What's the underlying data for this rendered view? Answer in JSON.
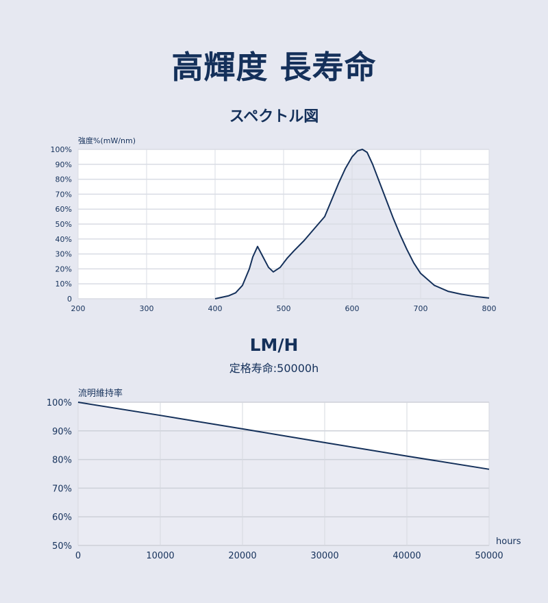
{
  "page": {
    "title": "高輝度 長寿命"
  },
  "spectrum": {
    "heading": "スペクトル図"
  },
  "lumen": {
    "heading": "LM/H",
    "subheading": "定格寿命:50000h"
  },
  "colors": {
    "background": "#e6e8f1",
    "plot_background": "#ffffff",
    "grid": "#d9dce4",
    "line": "#14305a",
    "fill": "#e6e8f1",
    "text": "#14305a"
  },
  "chart_data": [
    {
      "type": "area",
      "title": "スペクトル図",
      "xlabel": "",
      "ylabel": "強度%(mW/nm)",
      "xlim": [
        200,
        800
      ],
      "ylim": [
        0,
        100
      ],
      "x_ticks": [
        "200",
        "300",
        "400",
        "500",
        "600",
        "700",
        "800"
      ],
      "y_ticks": [
        "0",
        "10%",
        "20%",
        "30%",
        "40%",
        "50%",
        "60%",
        "70%",
        "80%",
        "90%",
        "100%"
      ],
      "grid": true,
      "series": [
        {
          "x": [
            400,
            420,
            430,
            440,
            450,
            455,
            462,
            470,
            478,
            485,
            495,
            505,
            515,
            530,
            545,
            560,
            570,
            580,
            590,
            600,
            608,
            615,
            622,
            630,
            640,
            650,
            660,
            670,
            680,
            690,
            700,
            720,
            740,
            760,
            780,
            800
          ],
          "y": [
            0,
            2,
            4,
            9,
            20,
            28,
            35,
            28,
            21,
            18,
            21,
            27,
            32,
            39,
            47,
            55,
            66,
            77,
            87,
            95,
            99,
            100,
            98,
            90,
            78,
            66,
            54,
            43,
            33,
            24,
            17,
            9,
            5,
            3,
            1.5,
            0.5
          ]
        }
      ]
    },
    {
      "type": "area",
      "title": "LM/H",
      "xlabel": "hours",
      "ylabel": "流明維持率",
      "xlim": [
        0,
        50000
      ],
      "ylim": [
        50,
        100
      ],
      "x_ticks": [
        "0",
        "10000",
        "20000",
        "30000",
        "40000",
        "50000"
      ],
      "y_ticks": [
        "50%",
        "60%",
        "70%",
        "80%",
        "90%",
        "100%"
      ],
      "grid": true,
      "series": [
        {
          "x": [
            0,
            10000,
            20000,
            30000,
            40000,
            50000
          ],
          "y": [
            100,
            95.4,
            90.7,
            85.9,
            81.2,
            76.6
          ]
        }
      ]
    }
  ]
}
